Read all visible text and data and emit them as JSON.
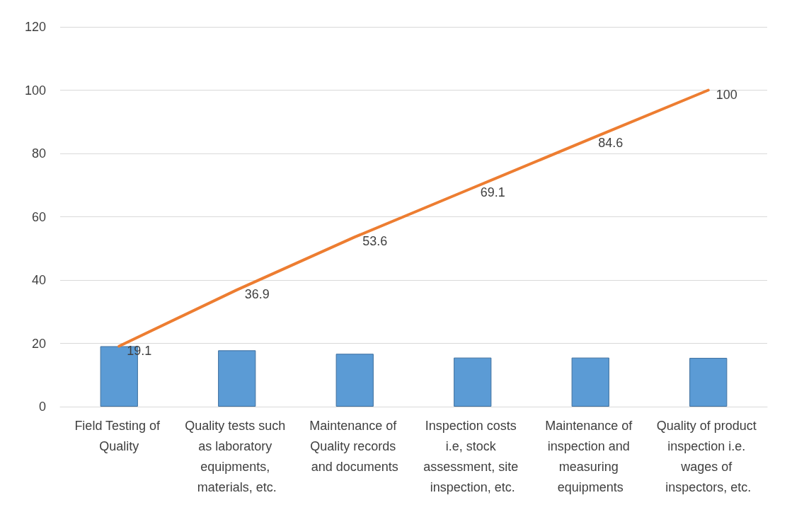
{
  "chart_data": {
    "type": "bar",
    "categories": [
      "Field Testing of Quality",
      "Quality tests such as laboratory equipments, materials, etc.",
      "Maintenance of Quality records and documents",
      "Inspection costs i.e, stock assessment, site inspection, etc.",
      "Maintenance of inspection and measuring equipments",
      "Quality of product inspection i.e. wages of inspectors, etc."
    ],
    "series": [
      {
        "color": "#5b9bd5",
        "values": [
          19.1,
          17.8,
          16.7,
          15.5,
          15.5,
          15.4
        ]
      },
      {
        "type": "line",
        "color": "#ed7d31",
        "values": [
          19.1,
          36.9,
          53.6,
          69.1,
          84.6,
          100
        ],
        "value_labels": [
          "19.1",
          "36.9",
          "53.6",
          "69.1",
          "84.6",
          "100"
        ]
      }
    ],
    "ylim": [
      0,
      120
    ],
    "yticks": [
      0,
      20,
      40,
      60,
      80,
      100,
      120
    ],
    "grid": "y",
    "marker": "none",
    "line_style": "solid"
  }
}
